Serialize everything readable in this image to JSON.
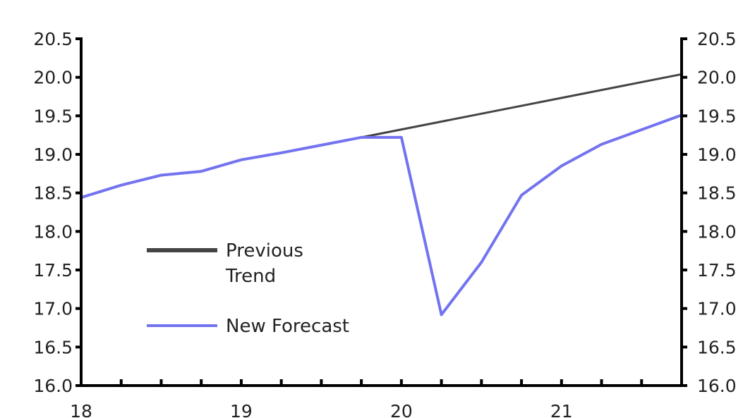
{
  "chart_data": {
    "type": "line",
    "title": "",
    "xlabel": "",
    "ylabel": "",
    "x": [
      2018.0,
      2018.25,
      2018.5,
      2018.75,
      2019.0,
      2019.25,
      2019.5,
      2019.75,
      2020.0,
      2020.25,
      2020.5,
      2020.75,
      2021.0,
      2021.25,
      2021.5,
      2021.75
    ],
    "x_ticks": [
      18,
      19,
      20,
      21
    ],
    "x_tick_labels": [
      "18",
      "19",
      "20",
      "21"
    ],
    "xlim": [
      2018.0,
      2021.75
    ],
    "ylim": [
      16.0,
      20.5
    ],
    "y_ticks": [
      16.0,
      16.5,
      17.0,
      17.5,
      18.0,
      18.5,
      19.0,
      19.5,
      20.0,
      20.5
    ],
    "y_tick_labels": [
      "16.0",
      "16.5",
      "17.0",
      "17.5",
      "18.0",
      "18.5",
      "19.0",
      "19.5",
      "20.0",
      "20.5"
    ],
    "right_axis": true,
    "grid": false,
    "legend_position": "center-left",
    "series": [
      {
        "name": "Previous Trend",
        "legend_lines": [
          "Previous",
          "Trend"
        ],
        "color": "#444444",
        "x": [
          2019.75,
          2021.75
        ],
        "values": [
          19.22,
          20.04
        ]
      },
      {
        "name": "New Forecast",
        "legend_lines": [
          "New Forecast"
        ],
        "color": "#7373f0",
        "x": [
          2018.0,
          2018.25,
          2018.5,
          2018.75,
          2019.0,
          2019.25,
          2019.5,
          2019.75,
          2020.0,
          2020.25,
          2020.5,
          2020.75,
          2021.0,
          2021.25,
          2021.5,
          2021.75
        ],
        "values": [
          18.44,
          18.6,
          18.73,
          18.78,
          18.93,
          19.02,
          19.12,
          19.22,
          19.22,
          16.92,
          17.6,
          18.47,
          18.85,
          19.13,
          19.32,
          19.51
        ]
      }
    ]
  }
}
